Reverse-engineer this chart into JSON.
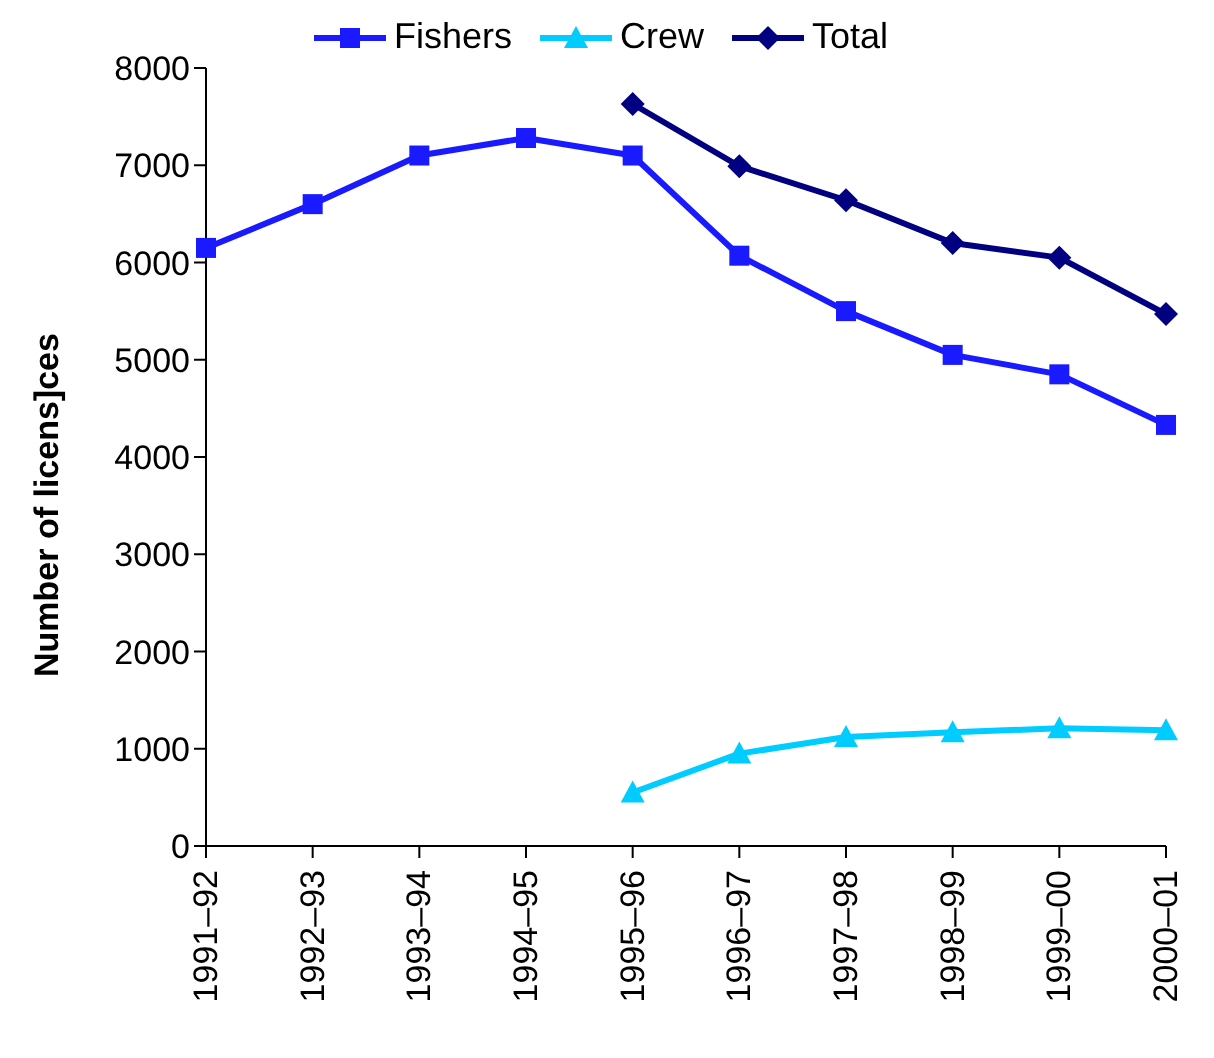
{
  "chart_data": {
    "type": "line",
    "ylabel": "Number of licens]ces",
    "categories": [
      "1991–92",
      "1992–93",
      "1993–94",
      "1994–95",
      "1995–96",
      "1996–97",
      "1997–98",
      "1998–99",
      "1999–00",
      "2000–01"
    ],
    "series": [
      {
        "name": "Fishers",
        "color": "#1a1aff",
        "marker": "square",
        "values": [
          6150,
          6600,
          7100,
          7280,
          7100,
          6070,
          5500,
          5050,
          4850,
          4330
        ]
      },
      {
        "name": "Crew",
        "color": "#00ccff",
        "marker": "triangle",
        "values": [
          null,
          null,
          null,
          null,
          550,
          950,
          1120,
          1170,
          1210,
          1190
        ]
      },
      {
        "name": "Total",
        "color": "#000080",
        "marker": "diamond",
        "values": [
          null,
          null,
          null,
          null,
          7630,
          6990,
          6640,
          6200,
          6050,
          5470
        ]
      }
    ],
    "ylim": [
      0,
      8000
    ],
    "yticks": [
      0,
      1000,
      2000,
      3000,
      4000,
      5000,
      6000,
      7000,
      8000
    ],
    "grid": false,
    "legend": "top",
    "line_style": "solid"
  }
}
